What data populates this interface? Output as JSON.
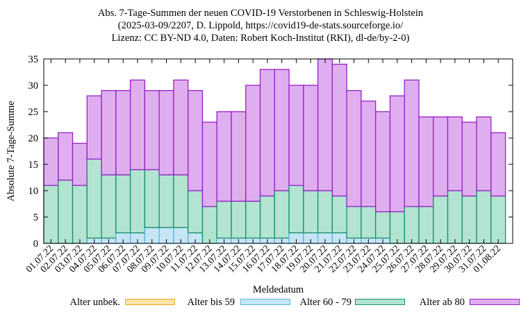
{
  "chart_data": {
    "type": "bar",
    "stacked": true,
    "title_lines": [
      "Abs. 7-Tage-Summen der neuen COVID-19 Verstorbenen in Schleswig-Holstein",
      "(2025-03-09/2207, D. Lippold, https://covid19-de-stats.sourceforge.io/",
      "Lizenz: CC BY-ND 4.0, Daten: Robert Koch-Institut (RKI), dl-de/by-2-0)"
    ],
    "xlabel": "Meldedatum",
    "ylabel": "Absolute 7-Tage-Summe",
    "ylim": [
      0,
      35
    ],
    "yticks": [
      0,
      5,
      10,
      15,
      20,
      25,
      30,
      35
    ],
    "grid": false,
    "legend_position": "bottom",
    "categories": [
      "01.07.22",
      "02.07.22",
      "03.07.22",
      "04.07.22",
      "05.07.22",
      "06.07.22",
      "07.07.22",
      "08.07.22",
      "09.07.22",
      "10.07.22",
      "11.07.22",
      "12.07.22",
      "13.07.22",
      "14.07.22",
      "15.07.22",
      "16.07.22",
      "17.07.22",
      "18.07.22",
      "19.07.22",
      "20.07.22",
      "21.07.22",
      "22.07.22",
      "23.07.22",
      "24.07.22",
      "25.07.22",
      "26.07.22",
      "27.07.22",
      "28.07.22",
      "29.07.22",
      "30.07.22",
      "31.07.22",
      "01.08.22"
    ],
    "series": [
      {
        "name": "Alter unbek.",
        "fill": "#fce4a8",
        "stroke": "#e6a817",
        "values": [
          0,
          0,
          0,
          0,
          0,
          0,
          0,
          0,
          0,
          0,
          0,
          0,
          0,
          0,
          0,
          0,
          0,
          0,
          0,
          0,
          0,
          0,
          0,
          0,
          0,
          0,
          0,
          0,
          0,
          0,
          0,
          0
        ]
      },
      {
        "name": "Alter bis 59",
        "fill": "#c6e6f6",
        "stroke": "#5ab4de",
        "values": [
          0,
          0,
          0,
          1,
          1,
          2,
          2,
          3,
          3,
          3,
          2,
          0,
          1,
          1,
          1,
          1,
          1,
          2,
          2,
          2,
          2,
          1,
          1,
          1,
          0,
          0,
          0,
          0,
          0,
          0,
          0,
          0
        ]
      },
      {
        "name": "Alter 60 - 79",
        "fill": "#b3e3d1",
        "stroke": "#149068",
        "values": [
          11,
          12,
          11,
          15,
          12,
          11,
          12,
          11,
          10,
          10,
          8,
          7,
          7,
          7,
          7,
          8,
          9,
          9,
          8,
          8,
          7,
          6,
          6,
          5,
          6,
          7,
          7,
          9,
          10,
          9,
          10,
          9
        ]
      },
      {
        "name": "Alter ab 80",
        "fill": "#dfaeef",
        "stroke": "#9520c4",
        "values": [
          9,
          9,
          8,
          12,
          16,
          16,
          17,
          15,
          16,
          18,
          19,
          16,
          17,
          17,
          22,
          24,
          23,
          19,
          20,
          25,
          25,
          22,
          20,
          19,
          22,
          24,
          17,
          15,
          14,
          14,
          14,
          12
        ]
      }
    ]
  }
}
